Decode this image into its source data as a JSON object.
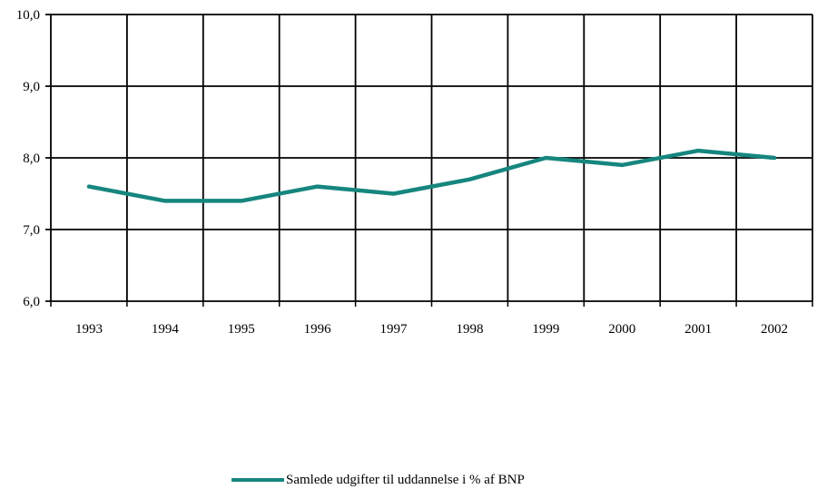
{
  "chart_data": {
    "type": "line",
    "title": "",
    "xlabel": "",
    "ylabel": "",
    "categories": [
      "1993",
      "1994",
      "1995",
      "1996",
      "1997",
      "1998",
      "1999",
      "2000",
      "2001",
      "2002"
    ],
    "ylim": [
      6.0,
      10.0
    ],
    "yticks": [
      "6,0",
      "7,0",
      "8,0",
      "9,0",
      "10,0"
    ],
    "grid": true,
    "legend_position": "bottom",
    "series": [
      {
        "name": "Samlede udgifter til uddannelse i % af BNP",
        "color": "#16867e",
        "values": [
          7.6,
          7.4,
          7.4,
          7.6,
          7.5,
          7.7,
          8.0,
          7.9,
          8.1,
          8.0
        ]
      }
    ]
  }
}
